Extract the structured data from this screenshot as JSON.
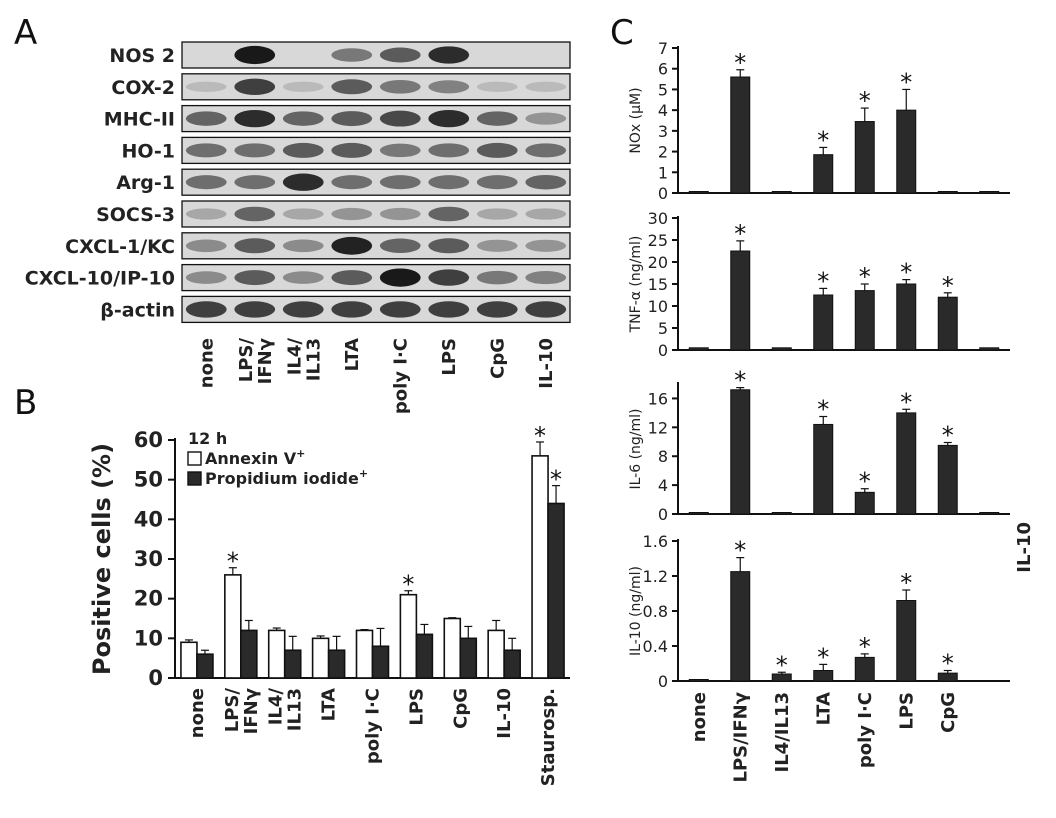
{
  "panel_letters": [
    "A",
    "B",
    "C"
  ],
  "blot": {
    "rows": [
      "NOS 2",
      "COX-2",
      "MHC-II",
      "HO-1",
      "Arg-1",
      "SOCS-3",
      "CXCL-1/KC",
      "CXCL-10/IP-10",
      "β-actin"
    ],
    "lanes": [
      "none",
      "LPS/ IFNγ",
      "IL4/ IL13",
      "LTA",
      "poly I·C",
      "LPS",
      "CpG",
      "IL-10"
    ],
    "intensity": [
      [
        0.05,
        0.95,
        0.05,
        0.45,
        0.6,
        0.85,
        0.05,
        0.05
      ],
      [
        0.1,
        0.75,
        0.1,
        0.6,
        0.45,
        0.4,
        0.1,
        0.1
      ],
      [
        0.55,
        0.85,
        0.55,
        0.6,
        0.7,
        0.85,
        0.55,
        0.3
      ],
      [
        0.5,
        0.5,
        0.6,
        0.6,
        0.45,
        0.5,
        0.6,
        0.5
      ],
      [
        0.5,
        0.5,
        0.85,
        0.5,
        0.5,
        0.5,
        0.5,
        0.55
      ],
      [
        0.2,
        0.55,
        0.2,
        0.3,
        0.3,
        0.55,
        0.2,
        0.2
      ],
      [
        0.35,
        0.6,
        0.35,
        0.9,
        0.55,
        0.6,
        0.3,
        0.3
      ],
      [
        0.35,
        0.6,
        0.35,
        0.6,
        0.95,
        0.75,
        0.45,
        0.4
      ],
      [
        0.75,
        0.75,
        0.75,
        0.75,
        0.75,
        0.75,
        0.75,
        0.75
      ]
    ]
  },
  "chart_data": [
    {
      "panel": "B",
      "type": "bar",
      "categories": [
        "none",
        "LPS/ IFNγ",
        "IL4/ IL13",
        "LTA",
        "poly I·C",
        "LPS",
        "CpG",
        "IL-10",
        "Staurosp."
      ],
      "series": [
        {
          "name": "Annexin V+",
          "values": [
            9,
            26,
            12,
            10,
            12,
            21,
            15,
            12,
            56
          ],
          "errors": [
            0.6,
            1.8,
            0.6,
            0.6,
            0.2,
            1.0,
            0.2,
            2.5,
            3.5
          ]
        },
        {
          "name": "Propidium iodide+",
          "values": [
            6,
            12,
            7,
            7,
            8,
            11,
            10,
            7,
            44
          ],
          "errors": [
            1.0,
            2.5,
            3.5,
            3.5,
            4.5,
            2.5,
            3.0,
            3.0,
            4.5
          ]
        }
      ],
      "significant": [
        [
          false,
          false
        ],
        [
          true,
          false
        ],
        [
          false,
          false
        ],
        [
          false,
          false
        ],
        [
          false,
          false
        ],
        [
          true,
          false
        ],
        [
          false,
          false
        ],
        [
          false,
          false
        ],
        [
          true,
          true
        ]
      ],
      "title": "",
      "annotation": "12 h",
      "ylabel": "Positive cells  (%)",
      "ylim": [
        0,
        60
      ],
      "yticks": [
        0,
        10,
        20,
        30,
        40,
        50,
        60
      ]
    },
    {
      "panel": "C",
      "type": "bar",
      "categories": [
        "none",
        "LPS/IFNγ",
        "IL4/IL13",
        "LTA",
        "poly I·C",
        "LPS",
        "CpG",
        "IL-10"
      ],
      "panels": [
        {
          "ylabel": "NOx (μM)",
          "ylim": [
            0,
            7
          ],
          "yticks": [
            0,
            1,
            2,
            3,
            4,
            5,
            6,
            7
          ],
          "values": [
            0.05,
            5.6,
            0.05,
            1.85,
            3.45,
            4.0,
            0.05,
            0.05
          ],
          "errors": [
            0,
            0.35,
            0,
            0.35,
            0.65,
            1.0,
            0,
            0
          ],
          "significant": [
            false,
            true,
            false,
            true,
            true,
            true,
            false,
            false
          ]
        },
        {
          "ylabel": "TNF-α (ng/ml)",
          "ylim": [
            0,
            30
          ],
          "yticks": [
            0,
            5,
            10,
            15,
            20,
            25,
            30
          ],
          "values": [
            0.5,
            22.5,
            0.5,
            12.5,
            13.5,
            15.0,
            12.0,
            0.5
          ],
          "errors": [
            0,
            2.3,
            0,
            1.5,
            1.5,
            1.0,
            1.0,
            0
          ],
          "significant": [
            false,
            true,
            false,
            true,
            true,
            true,
            true,
            false
          ]
        },
        {
          "ylabel": "IL-6 (ng/ml)",
          "ylim": [
            0,
            18
          ],
          "yticks": [
            0,
            4,
            8,
            12,
            16
          ],
          "values": [
            0.05,
            17.2,
            0.2,
            12.4,
            3.0,
            14.0,
            9.5,
            0.1
          ],
          "errors": [
            0,
            0.3,
            0,
            1.1,
            0.5,
            0.5,
            0.4,
            0
          ],
          "significant": [
            false,
            true,
            false,
            true,
            true,
            true,
            true,
            false
          ],
          "na_label_index": 7,
          "na_label": "IL-10"
        },
        {
          "ylabel": "IL-10 (ng/ml)",
          "ylim": [
            0,
            1.6
          ],
          "yticks": [
            0,
            0.4,
            0.8,
            1.2,
            1.6
          ],
          "ytick_labels": [
            "0",
            "0.4",
            "0.8",
            "1.2",
            "1.6"
          ],
          "values": [
            0.0,
            1.25,
            0.08,
            0.12,
            0.27,
            0.92,
            0.09
          ],
          "errors": [
            0,
            0.16,
            0.02,
            0.07,
            0.04,
            0.12,
            0.03
          ],
          "significant": [
            false,
            true,
            true,
            true,
            true,
            true,
            true
          ]
        }
      ]
    }
  ]
}
